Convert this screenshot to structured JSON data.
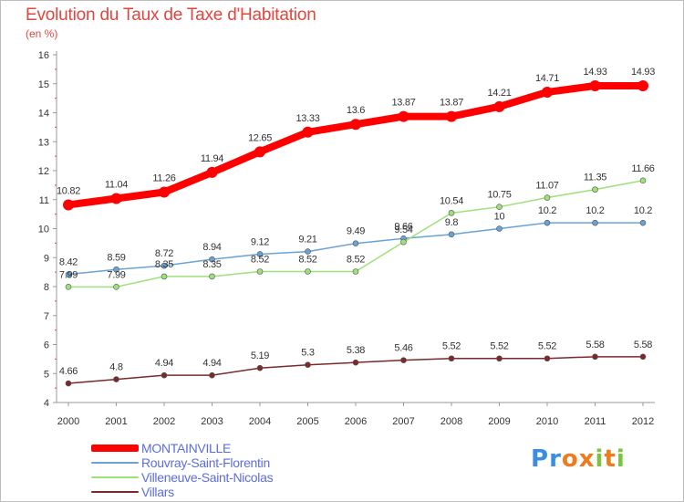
{
  "header": {
    "title": "Evolution du Taux de Taxe d'Habitation",
    "unit": "(en %)"
  },
  "chart_data": {
    "type": "line",
    "title": "Evolution du Taux de Taxe d'Habitation",
    "ylabel": "(en %)",
    "xlabel": "",
    "x": [
      "2000",
      "2001",
      "2002",
      "2003",
      "2004",
      "2005",
      "2006",
      "2007",
      "2008",
      "2009",
      "2010",
      "2011",
      "2012"
    ],
    "ylim": [
      4,
      16
    ],
    "yticks": [
      "4",
      "5",
      "6",
      "7",
      "8",
      "9",
      "10",
      "11",
      "12",
      "13",
      "14",
      "15",
      "16"
    ],
    "grid": false,
    "legend_position": "bottom-left",
    "series": [
      {
        "name": "MONTAINVILLE",
        "color": "#ff0000",
        "values": [
          10.82,
          11.04,
          11.26,
          11.94,
          12.65,
          13.33,
          13.6,
          13.87,
          13.87,
          14.21,
          14.71,
          14.93,
          14.93
        ],
        "labels": [
          "10.82",
          "11.04",
          "11.26",
          "11.94",
          "12.65",
          "13.33",
          "13.6",
          "13.87",
          "13.87",
          "14.21",
          "14.71",
          "14.93",
          "14.93"
        ]
      },
      {
        "name": "Rouvray-Saint-Florentin",
        "color": "#6aa3d3",
        "values": [
          8.42,
          8.59,
          8.72,
          8.94,
          9.12,
          9.21,
          9.49,
          9.66,
          9.8,
          10,
          10.2,
          10.2,
          10.2
        ],
        "labels": [
          "8.42",
          "8.59",
          "8.72",
          "8.94",
          "9.12",
          "9.21",
          "9.49",
          "9.66",
          "9.8",
          "10",
          "10.2",
          "10.2",
          "10.2"
        ]
      },
      {
        "name": "Villeneuve-Saint-Nicolas",
        "color": "#9ee07a",
        "values": [
          7.99,
          7.99,
          8.35,
          8.35,
          8.52,
          8.52,
          8.52,
          9.54,
          10.54,
          10.75,
          11.07,
          11.35,
          11.66
        ],
        "labels": [
          "7.99",
          "7.99",
          "8.35",
          "8.35",
          "8.52",
          "8.52",
          "8.52",
          "9.54",
          "10.54",
          "10.75",
          "11.07",
          "11.35",
          "11.66"
        ]
      },
      {
        "name": "Villars",
        "color": "#7a2a2a",
        "values": [
          4.66,
          4.8,
          4.94,
          4.94,
          5.19,
          5.3,
          5.38,
          5.46,
          5.52,
          5.52,
          5.52,
          5.58,
          5.58
        ],
        "labels": [
          "4.66",
          "4.8",
          "4.94",
          "4.94",
          "5.19",
          "5.3",
          "5.38",
          "5.46",
          "5.52",
          "5.52",
          "5.52",
          "5.58",
          "5.58"
        ]
      }
    ]
  },
  "logo": {
    "text": "Proxiti",
    "letters": [
      "P",
      "r",
      "o",
      "x",
      "i",
      "t",
      "i"
    ],
    "colors": [
      "#3b8de0",
      "#3b8de0",
      "#ef7b1d",
      "#ef7b1d",
      "#7cc342",
      "#ef7b1d",
      "#7cc342"
    ]
  }
}
